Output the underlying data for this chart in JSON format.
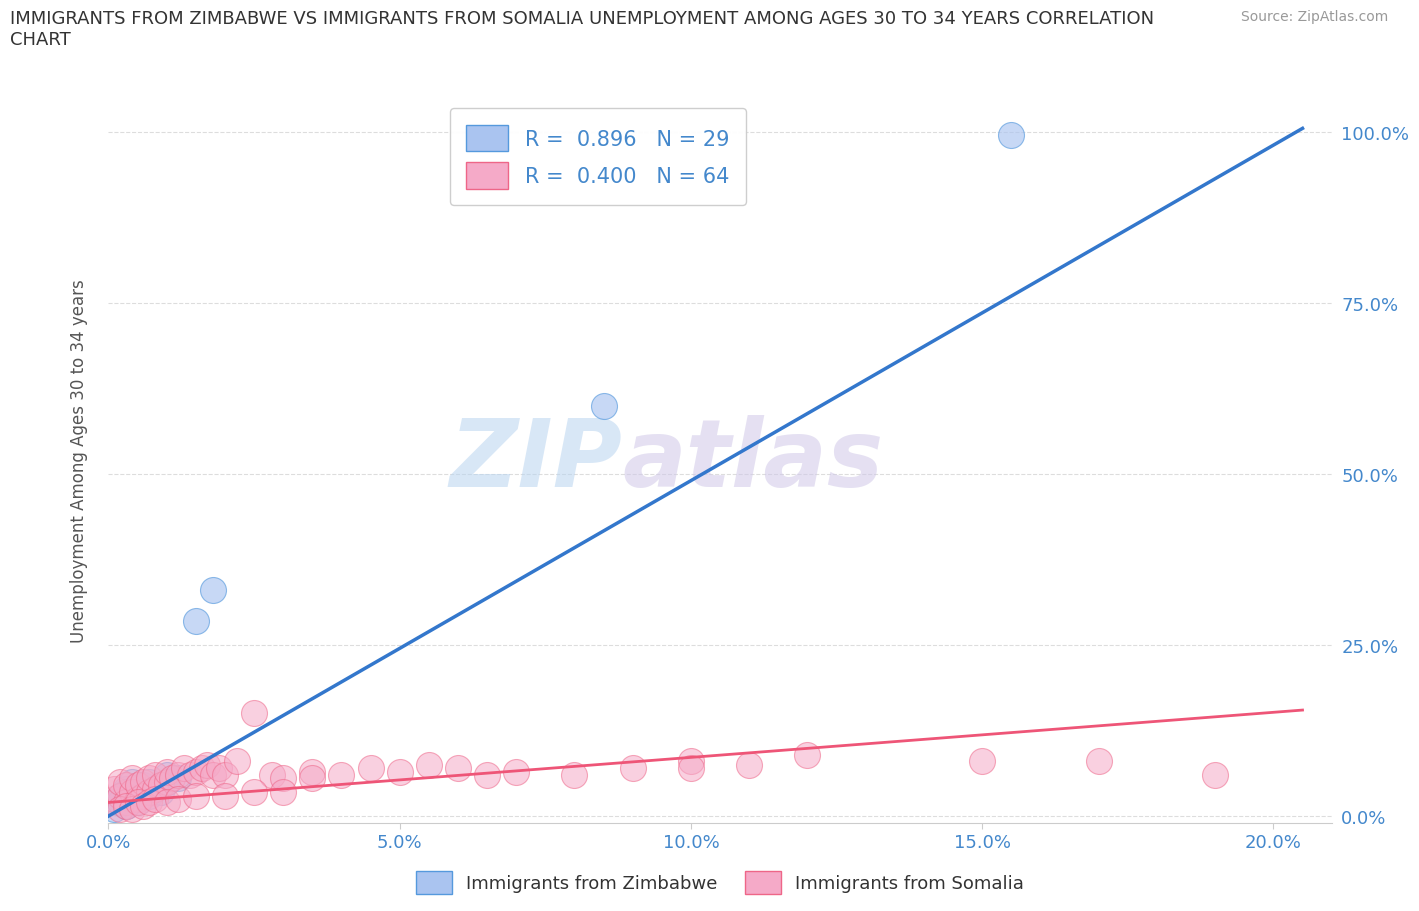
{
  "title": "IMMIGRANTS FROM ZIMBABWE VS IMMIGRANTS FROM SOMALIA UNEMPLOYMENT AMONG AGES 30 TO 34 YEARS CORRELATION\nCHART",
  "source": "Source: ZipAtlas.com",
  "ylabel": "Unemployment Among Ages 30 to 34 years",
  "xlabel_ticks": [
    "0.0%",
    "5.0%",
    "10.0%",
    "15.0%",
    "20.0%"
  ],
  "ylabel_ticks": [
    "0.0%",
    "25.0%",
    "50.0%",
    "75.0%",
    "100.0%"
  ],
  "xlim": [
    0.0,
    0.21
  ],
  "ylim": [
    -0.01,
    1.05
  ],
  "watermark_zip": "ZIP",
  "watermark_atlas": "atlas",
  "legend1_label": "R =  0.896   N = 29",
  "legend2_label": "R =  0.400   N = 64",
  "legend_bottom_label1": "Immigrants from Zimbabwe",
  "legend_bottom_label2": "Immigrants from Somalia",
  "zimbabwe_color": "#aac4f0",
  "somalia_color": "#f5aac8",
  "zimbabwe_edge_color": "#5599dd",
  "somalia_edge_color": "#ee6688",
  "zimbabwe_line_color": "#3377cc",
  "somalia_line_color": "#ee5577",
  "background_color": "#ffffff",
  "grid_color": "#dddddd",
  "title_color": "#333333",
  "axis_label_color": "#555555",
  "tick_color": "#4488cc",
  "zimbabwe_scatter_x": [
    0.001,
    0.002,
    0.002,
    0.003,
    0.003,
    0.004,
    0.004,
    0.005,
    0.005,
    0.006,
    0.006,
    0.007,
    0.007,
    0.008,
    0.009,
    0.01,
    0.01,
    0.012,
    0.015,
    0.018,
    0.001,
    0.002,
    0.003,
    0.003,
    0.004,
    0.005,
    0.007,
    0.085,
    0.155
  ],
  "zimbabwe_scatter_y": [
    0.02,
    0.025,
    0.03,
    0.015,
    0.04,
    0.03,
    0.05,
    0.025,
    0.04,
    0.035,
    0.045,
    0.03,
    0.05,
    0.04,
    0.035,
    0.05,
    0.06,
    0.055,
    0.285,
    0.33,
    0.01,
    0.02,
    0.015,
    0.035,
    0.025,
    0.02,
    0.035,
    0.6,
    0.995
  ],
  "somalia_scatter_x": [
    0.001,
    0.001,
    0.002,
    0.002,
    0.003,
    0.003,
    0.004,
    0.004,
    0.005,
    0.005,
    0.006,
    0.006,
    0.007,
    0.007,
    0.008,
    0.008,
    0.009,
    0.01,
    0.01,
    0.011,
    0.012,
    0.013,
    0.014,
    0.015,
    0.016,
    0.017,
    0.018,
    0.019,
    0.02,
    0.022,
    0.025,
    0.028,
    0.03,
    0.035,
    0.04,
    0.045,
    0.05,
    0.055,
    0.06,
    0.065,
    0.07,
    0.08,
    0.09,
    0.1,
    0.11,
    0.12,
    0.002,
    0.003,
    0.004,
    0.005,
    0.006,
    0.007,
    0.008,
    0.01,
    0.012,
    0.015,
    0.02,
    0.025,
    0.03,
    0.035,
    0.1,
    0.15,
    0.17,
    0.19
  ],
  "somalia_scatter_y": [
    0.025,
    0.04,
    0.03,
    0.05,
    0.02,
    0.045,
    0.035,
    0.055,
    0.025,
    0.045,
    0.03,
    0.05,
    0.035,
    0.055,
    0.04,
    0.06,
    0.045,
    0.05,
    0.065,
    0.055,
    0.06,
    0.07,
    0.06,
    0.065,
    0.07,
    0.075,
    0.06,
    0.07,
    0.06,
    0.08,
    0.15,
    0.06,
    0.055,
    0.065,
    0.06,
    0.07,
    0.065,
    0.075,
    0.07,
    0.06,
    0.065,
    0.06,
    0.07,
    0.08,
    0.075,
    0.09,
    0.01,
    0.015,
    0.01,
    0.02,
    0.015,
    0.02,
    0.025,
    0.02,
    0.025,
    0.03,
    0.03,
    0.035,
    0.035,
    0.055,
    0.07,
    0.08,
    0.08,
    0.06
  ],
  "zimbabwe_line_x": [
    0.0,
    0.205
  ],
  "zimbabwe_line_y": [
    0.0,
    1.005
  ],
  "somalia_line_x": [
    0.0,
    0.205
  ],
  "somalia_line_y": [
    0.02,
    0.155
  ]
}
